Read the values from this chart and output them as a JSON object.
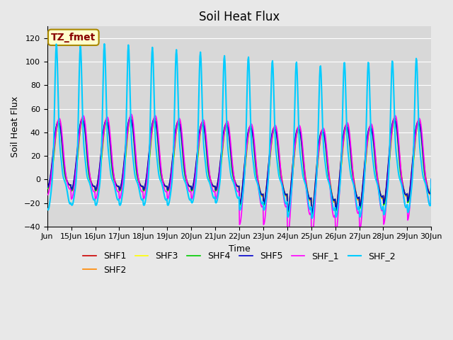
{
  "title": "Soil Heat Flux",
  "xlabel": "Time",
  "ylabel": "Soil Heat Flux",
  "ylim": [
    -40,
    130
  ],
  "yticks": [
    -40,
    -20,
    0,
    20,
    40,
    60,
    80,
    100,
    120
  ],
  "background_color": "#e8e8e8",
  "plot_bg_color": "#d8d8d8",
  "annotation_text": "TZ_fmet",
  "annotation_bg": "#ffffcc",
  "annotation_border": "#aa8800",
  "annotation_text_color": "#880000",
  "legend_entries": [
    "SHF1",
    "SHF2",
    "SHF3",
    "SHF4",
    "SHF5",
    "SHF_1",
    "SHF_2"
  ],
  "line_colors": [
    "#cc0000",
    "#ff8800",
    "#ffff00",
    "#00cc00",
    "#0000cc",
    "#ff00ff",
    "#00ccff"
  ],
  "line_widths": [
    1.2,
    1.2,
    1.2,
    1.2,
    1.2,
    1.2,
    1.5
  ],
  "n_days": 16,
  "start_day": 14,
  "samples_per_day": 48,
  "amplitudes_shf1": [
    45,
    47,
    46,
    48,
    47,
    45,
    44,
    43,
    41,
    40,
    40,
    38,
    42,
    41,
    47,
    45
  ],
  "amplitudes_shf2": [
    46,
    48,
    47,
    49,
    48,
    46,
    45,
    44,
    42,
    41,
    41,
    39,
    43,
    42,
    48,
    46
  ],
  "amplitudes_shf3": [
    44,
    46,
    45,
    47,
    46,
    44,
    43,
    42,
    40,
    39,
    39,
    37,
    41,
    40,
    46,
    44
  ],
  "amplitudes_shf4": [
    44,
    46,
    45,
    47,
    46,
    44,
    43,
    42,
    40,
    39,
    39,
    37,
    41,
    40,
    46,
    44
  ],
  "amplitudes_shf5": [
    45,
    47,
    46,
    48,
    47,
    45,
    44,
    43,
    41,
    40,
    40,
    38,
    42,
    41,
    47,
    45
  ],
  "amplitudes_shf_1": [
    44,
    46,
    45,
    47,
    46,
    44,
    43,
    42,
    40,
    39,
    39,
    37,
    41,
    40,
    46,
    44
  ],
  "amplitudes_shf_2": [
    115,
    113,
    115,
    114,
    112,
    110,
    108,
    105,
    104,
    101,
    100,
    97,
    100,
    100,
    101,
    103
  ],
  "neg_amplitudes": [
    -8,
    -10,
    -10,
    -10,
    -10,
    -10,
    -10,
    -10,
    -22,
    -22,
    -28,
    -30,
    -27,
    -25,
    -22,
    -20
  ],
  "neg_amplitudes_2": [
    -26,
    -22,
    -22,
    -22,
    -22,
    -22,
    -20,
    -20,
    -26,
    -26,
    -32,
    -33,
    -32,
    -32,
    -30,
    -28
  ]
}
